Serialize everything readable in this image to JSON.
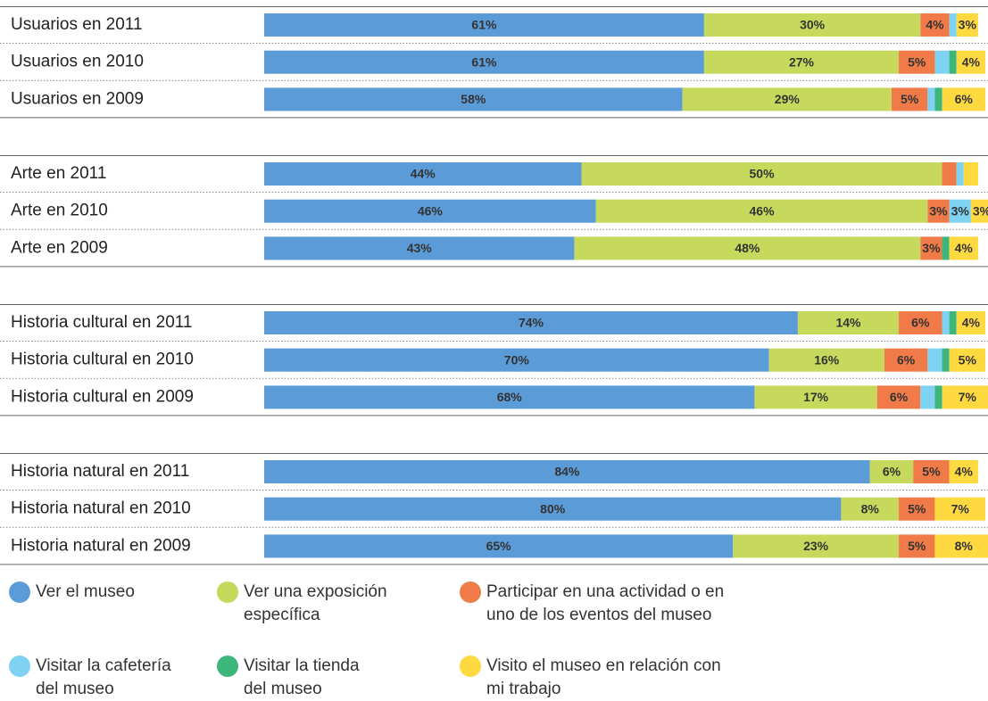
{
  "chart_data": {
    "type": "bar",
    "orientation": "horizontal",
    "stacked": true,
    "categories": [
      "Usuarios en 2011",
      "Usuarios en 2010",
      "Usuarios en 2009",
      "Arte en 2011",
      "Arte en 2010",
      "Arte en 2009",
      "Historia cultural en 2011",
      "Historia cultural en 2010",
      "Historia cultural en 2009",
      "Historia natural en 2011",
      "Historia natural en 2010",
      "Historia natural en 2009"
    ],
    "series": [
      {
        "name": "Ver el museo",
        "color": "#5b9bd8",
        "values": [
          61,
          61,
          58,
          44,
          46,
          43,
          74,
          70,
          68,
          84,
          80,
          65
        ],
        "value_labels": [
          "61%",
          "61%",
          "58%",
          "44%",
          "46%",
          "43%",
          "74%",
          "70%",
          "68%",
          "84%",
          "80%",
          "65%"
        ]
      },
      {
        "name": "Ver una exposición específica",
        "color": "#c6d95c",
        "values": [
          30,
          27,
          29,
          50,
          46,
          48,
          14,
          16,
          17,
          6,
          8,
          23
        ],
        "value_labels": [
          "30%",
          "27%",
          "29%",
          "50%",
          "46%",
          "48%",
          "14%",
          "16%",
          "17%",
          "6%",
          "8%",
          "23%"
        ]
      },
      {
        "name": "Participar en una actividad o en uno de los eventos del museo",
        "color": "#f07b48",
        "values": [
          4,
          5,
          5,
          2,
          3,
          3,
          6,
          6,
          6,
          5,
          5,
          5
        ],
        "value_labels": [
          "4%",
          "5%",
          "5%",
          null,
          "3%",
          "3%",
          "6%",
          "6%",
          "6%",
          "5%",
          "5%",
          "5%"
        ]
      },
      {
        "name": "Visitar la cafetería del museo",
        "color": "#7fd2f2",
        "values": [
          1,
          2,
          1,
          1,
          3,
          0,
          1,
          2,
          2,
          0,
          0,
          0
        ],
        "value_labels": [
          null,
          null,
          null,
          null,
          "3%",
          null,
          null,
          null,
          null,
          null,
          null,
          null
        ]
      },
      {
        "name": "Visitar la tienda del museo",
        "color": "#3db67c",
        "values": [
          0,
          1,
          1,
          0,
          0,
          1,
          1,
          1,
          1,
          0,
          0,
          0
        ],
        "value_labels": [
          null,
          null,
          null,
          null,
          null,
          null,
          null,
          null,
          null,
          null,
          null,
          null
        ]
      },
      {
        "name": "Visito el museo en relación con mi trabajo",
        "color": "#ffd940",
        "values": [
          3,
          4,
          6,
          2,
          3,
          4,
          4,
          5,
          7,
          4,
          7,
          8
        ],
        "value_labels": [
          "3%",
          "4%",
          "6%",
          null,
          "3%",
          "4%",
          "4%",
          "5%",
          "7%",
          "4%",
          "7%",
          "8%"
        ]
      }
    ]
  }
}
